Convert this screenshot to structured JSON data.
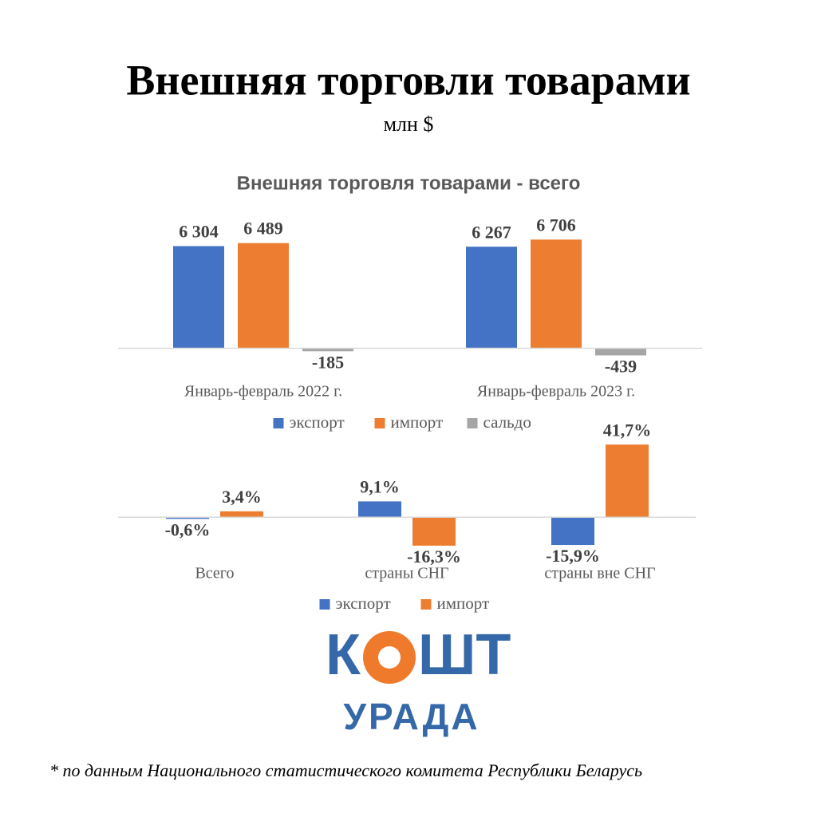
{
  "header": {
    "title": "Внешняя торговли товарами",
    "subtitle": "млн $"
  },
  "chart_data": [
    {
      "type": "bar",
      "title": "Внешняя торговля товарами - всего",
      "categories": [
        "Январь-февраль 2022 г.",
        "Январь-февраль 2023 г."
      ],
      "series": [
        {
          "name": "экспорт",
          "color": "#4472c4",
          "values": [
            6304,
            6267
          ],
          "value_labels": [
            "6 304",
            "6 267"
          ]
        },
        {
          "name": "импорт",
          "color": "#ed7d31",
          "values": [
            6489,
            6706
          ],
          "value_labels": [
            "6 489",
            "6 706"
          ]
        },
        {
          "name": "сальдо",
          "color": "#a5a5a5",
          "values": [
            -185,
            -439
          ],
          "value_labels": [
            "-185",
            "-439"
          ]
        }
      ],
      "ylim": [
        -1500,
        8000
      ],
      "legend": "bottom"
    },
    {
      "type": "bar",
      "categories": [
        "Всего",
        "страны СНГ",
        "страны вне СНГ"
      ],
      "series": [
        {
          "name": "экспорт",
          "color": "#4472c4",
          "values": [
            -0.6,
            9.1,
            -15.9
          ],
          "value_labels": [
            "-0,6%",
            "9,1%",
            "-15,9%"
          ]
        },
        {
          "name": "импорт",
          "color": "#ed7d31",
          "values": [
            3.4,
            -16.3,
            41.7
          ],
          "value_labels": [
            "3,4%",
            "-16,3%",
            "41,7%"
          ]
        }
      ],
      "ylim": [
        -20,
        45
      ],
      "legend": "bottom"
    }
  ],
  "logo": {
    "left": "К",
    "right": "ШТ",
    "bottom": "УРАДА"
  },
  "footnote": "* по данным Национального статистического комитета Республики Беларусь"
}
